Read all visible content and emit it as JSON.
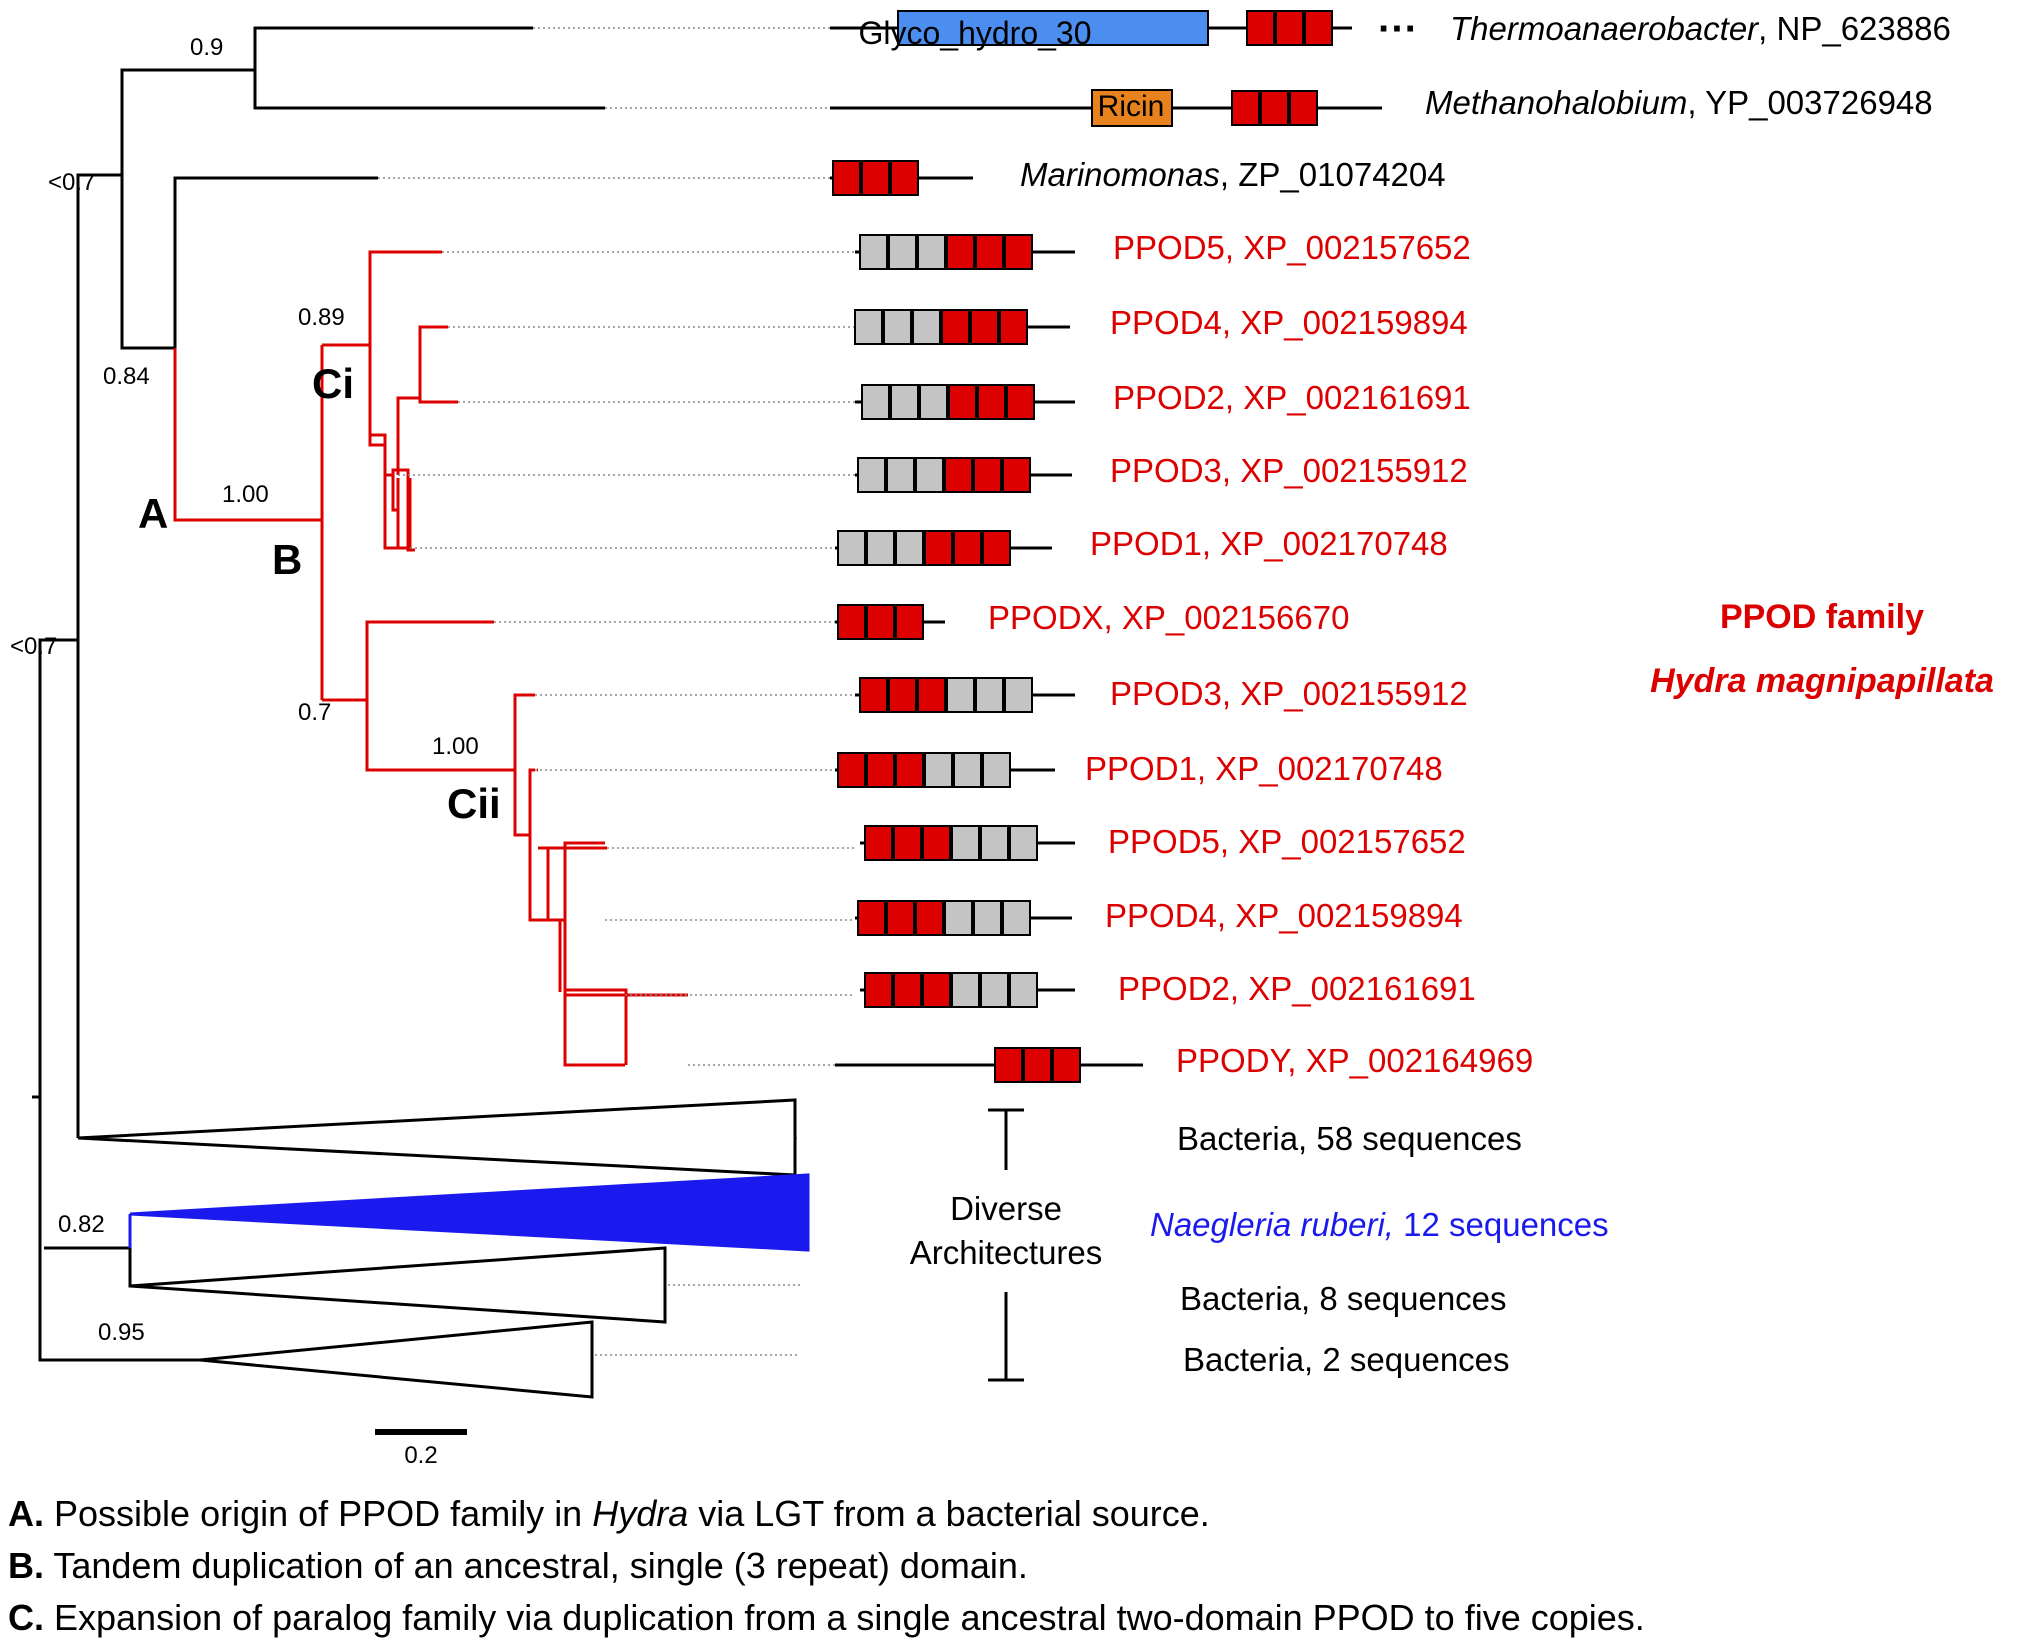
{
  "taxa": {
    "thermo_name": "Thermoanaerobacter",
    "thermo_acc": ", NP_623886",
    "metha_name": "Methanohalobium",
    "metha_acc": ", YP_003726948",
    "marino_name": "Marinomonas",
    "marino_acc": ", ZP_01074204",
    "ppod_ci": [
      "PPOD5, XP_002157652",
      "PPOD4, XP_002159894",
      "PPOD2, XP_002161691",
      "PPOD3, XP_002155912",
      "PPOD1, XP_002170748"
    ],
    "ppodx": "PPODX, XP_002156670",
    "ppod_cii": [
      "PPOD3, XP_002155912",
      "PPOD1, XP_002170748",
      "PPOD5, XP_002157652",
      "PPOD4, XP_002159894",
      "PPOD2, XP_002161691"
    ],
    "ppody": "PPODY, XP_002164969",
    "bact58": "Bacteria, 58 sequences",
    "naeg_name": "Naegleria ruberi,",
    "naeg_rest": " 12 sequences",
    "bact8": "Bacteria, 8 sequences",
    "bact2": "Bacteria, 2 sequences"
  },
  "domains": {
    "glyco": "Glyco_hydro_30",
    "ricin": "Ricin",
    "ellipsis": "···"
  },
  "support": {
    "s09": "0.9",
    "s07a": "<0.7",
    "s084": "0.84",
    "s100a": "1.00",
    "s089": "0.89",
    "s07": "0.7",
    "s100b": "1.00",
    "s07b": "<0.7",
    "s082": "0.82",
    "s095": "0.95"
  },
  "nodes": {
    "A": "A",
    "B": "B",
    "Ci": "Ci",
    "Cii": "Cii"
  },
  "family": {
    "line1": "PPOD family",
    "line2": "Hydra magnipapillata"
  },
  "diverse": {
    "line1": "Diverse",
    "line2": "Architectures"
  },
  "scale": {
    "label": "0.2"
  },
  "footnotes": [
    {
      "key": "A.",
      "pre": " Possible origin of PPOD family in ",
      "em": "Hydra",
      "post": " via LGT from a bacterial source."
    },
    {
      "key": "B.",
      "pre": " Tandem duplication of an ancestral, single (3 repeat) domain.",
      "em": "",
      "post": ""
    },
    {
      "key": "C.",
      "pre": " Expansion of paralog family via duplication from a single ancestral two-domain PPOD to five copies.",
      "em": "",
      "post": ""
    }
  ],
  "colors": {
    "ppod_red": "#dd0000",
    "repeat_red": "#dd0000",
    "repeat_gray": "#c4c4c4",
    "glyco_blue": "#4b8ef0",
    "ricin_orange": "#e8821e",
    "naegleria_blue": "#1a1aee"
  }
}
